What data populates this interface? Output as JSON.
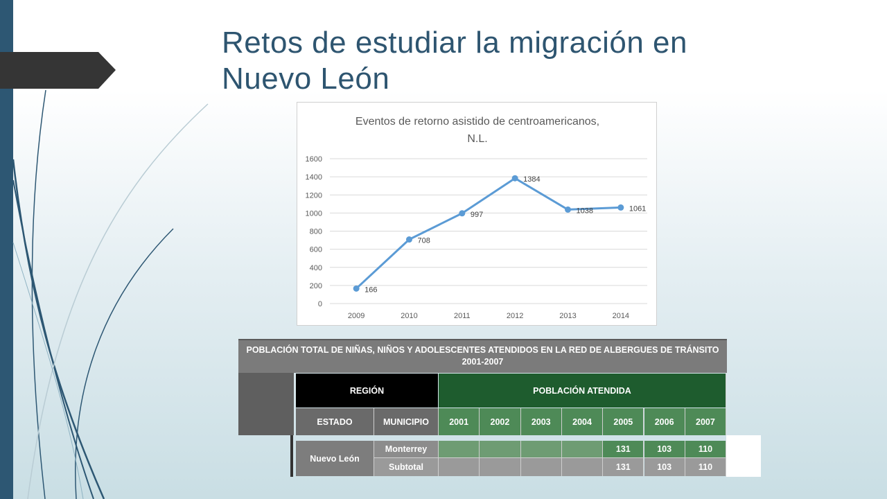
{
  "slide": {
    "title": "Retos de estudiar la migración en Nuevo León"
  },
  "colors": {
    "sidebar": "#2d5773",
    "tab": "#353535",
    "title": "#2e5570",
    "line": "#5b9bd5",
    "green_dark": "#1e5c2e",
    "green_header": "#4e8a57",
    "green_cell": "#6e9c73",
    "gray_cell": "#9a9a9a"
  },
  "chart_data": {
    "type": "line",
    "title": "Eventos de retorno asistido de centroamericanos, N.L.",
    "title_line1": "Eventos de retorno asistido de centroamericanos,",
    "title_line2": "N.L.",
    "xlabel": "",
    "ylabel": "",
    "categories": [
      "2009",
      "2010",
      "2011",
      "2012",
      "2013",
      "2014"
    ],
    "values": [
      166,
      708,
      997,
      1384,
      1038,
      1061
    ],
    "ylim": [
      0,
      1600
    ],
    "yticks": [
      0,
      200,
      400,
      600,
      800,
      1000,
      1200,
      1400,
      1600
    ],
    "grid": true,
    "data_labels": true
  },
  "table": {
    "title_line1": "POBLACIÓN TOTAL DE NIÑAS, NIÑOS Y ADOLESCENTES ATENDIDOS EN LA RED DE ALBERGUES DE TRÁNSITO",
    "title_line2": "2001-2007",
    "region_label": "REGIÓN",
    "poblacion_label": "POBLACIÓN ATENDIDA",
    "estado_label": "ESTADO",
    "municipio_label": "MUNICIPIO",
    "years": [
      "2001",
      "2002",
      "2003",
      "2004",
      "2005",
      "2006",
      "2007"
    ],
    "estado": "Nuevo León",
    "rows": [
      {
        "municipio": "Monterrey",
        "values": [
          "",
          "",
          "",
          "",
          "131",
          "103",
          "110"
        ]
      },
      {
        "municipio": "Subtotal",
        "values": [
          "",
          "",
          "",
          "",
          "131",
          "103",
          "110"
        ]
      }
    ]
  }
}
